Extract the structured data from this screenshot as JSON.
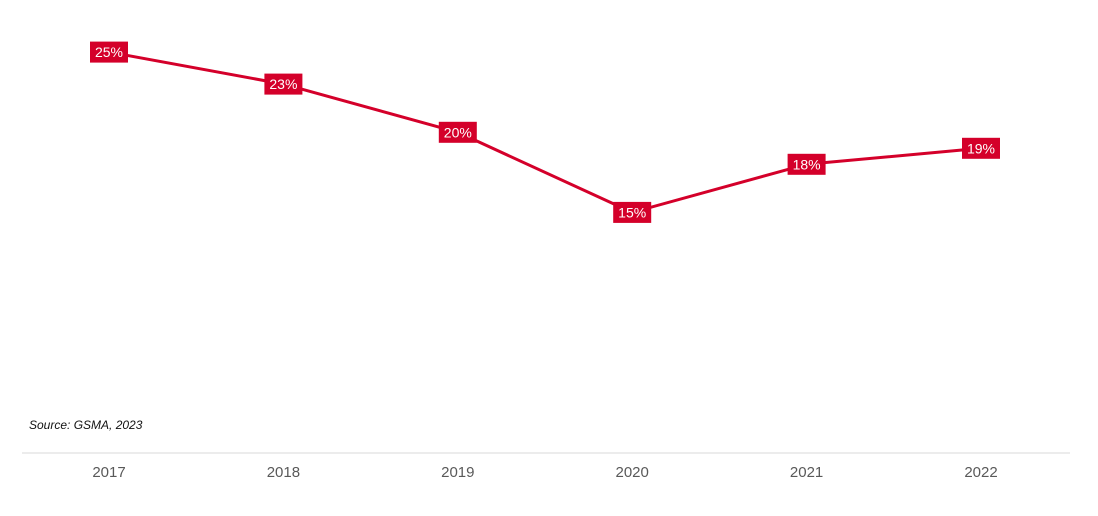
{
  "chart_data": {
    "type": "line",
    "categories": [
      "2017",
      "2018",
      "2019",
      "2020",
      "2021",
      "2022"
    ],
    "series": [
      {
        "values": [
          25,
          23,
          20,
          15,
          18,
          19
        ],
        "labels": [
          "25%",
          "23%",
          "20%",
          "15%",
          "18%",
          "19%"
        ]
      }
    ],
    "ylim": [
      0,
      27
    ],
    "grid": false,
    "legend": "none",
    "source": "Source: GSMA, 2023",
    "colors": {
      "line": "#d4002a",
      "label_bg": "#d4002a",
      "label_text": "#ffffff",
      "axis": "#d9d9d9",
      "tick_text": "#595959"
    }
  }
}
